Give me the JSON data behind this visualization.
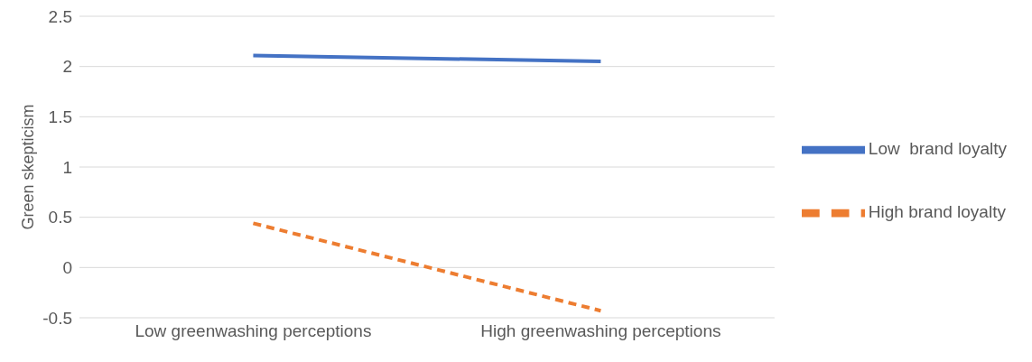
{
  "chart_data": {
    "type": "line",
    "ylabel": "Green skepticism",
    "categories": [
      "Low greenwashing perceptions",
      "High greenwashing perceptions"
    ],
    "series": [
      {
        "name": "Low  brand loyalty",
        "color": "#4472c4",
        "values": [
          2.11,
          2.05
        ],
        "line_style": "solid"
      },
      {
        "name": "High brand loyalty",
        "color": "#ed7d31",
        "values": [
          0.44,
          -0.43
        ],
        "line_style": "dashed"
      }
    ],
    "ylim": [
      -0.5,
      2.5
    ],
    "yticks": [
      -0.5,
      0,
      0.5,
      1,
      1.5,
      2,
      2.5
    ],
    "grid": "y",
    "legend": "right",
    "marker": "none"
  }
}
